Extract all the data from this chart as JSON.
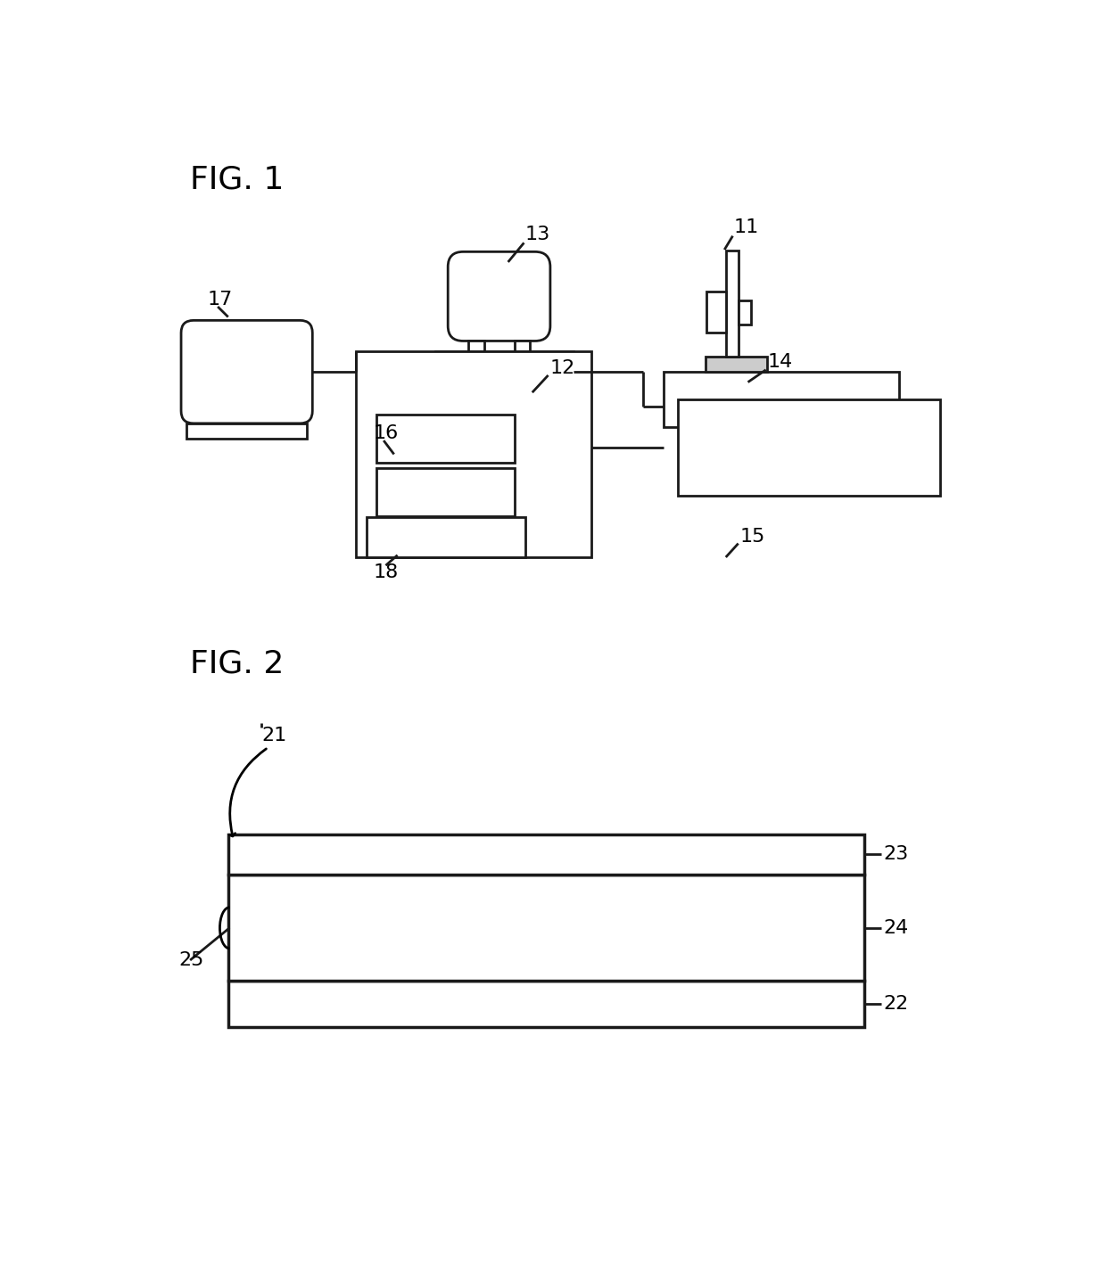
{
  "bg": "#ffffff",
  "lc": "#1a1a1a",
  "lw": 2.0,
  "fig1_title": "FIG. 1",
  "fig2_title": "FIG. 2",
  "font_title": 26,
  "font_label": 16
}
